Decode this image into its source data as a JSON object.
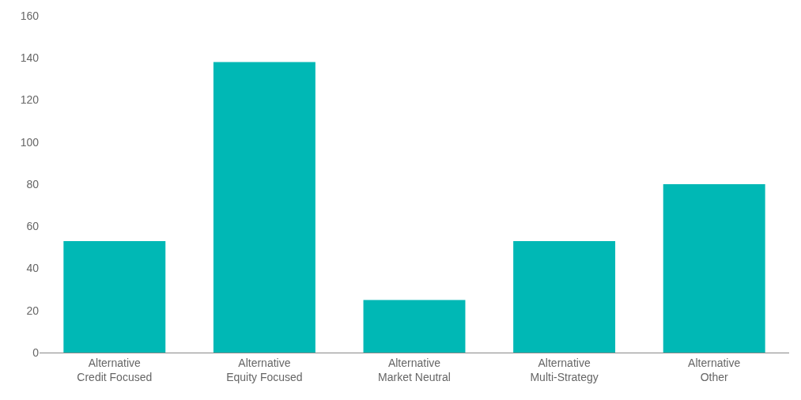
{
  "chart_data": {
    "type": "bar",
    "categories": [
      "Alternative\nCredit Focused",
      "Alternative\nEquity Focused",
      "Alternative\nMarket Neutral",
      "Alternative\nMulti-Strategy",
      "Alternative\nOther"
    ],
    "values": [
      53,
      138,
      25,
      53,
      80
    ],
    "color": "#00b8b5",
    "ylim": [
      0,
      160
    ],
    "yticks": [
      0,
      20,
      40,
      60,
      80,
      100,
      120,
      140,
      160
    ]
  }
}
